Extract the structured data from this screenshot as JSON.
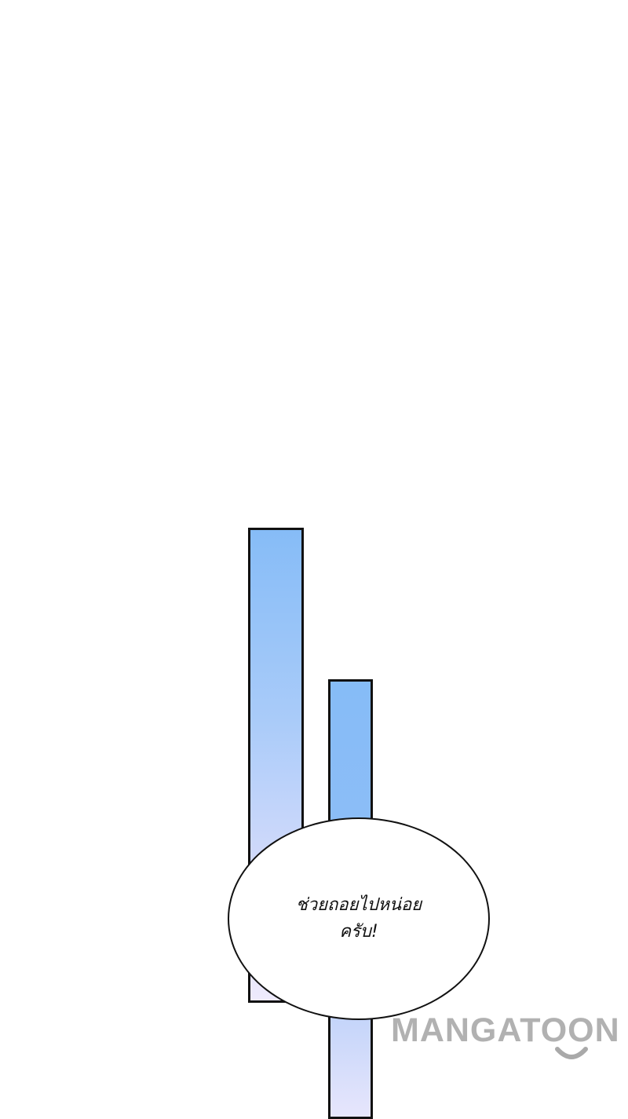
{
  "speech_bubble": {
    "text": "ช่วยถอยไปหน่อย\nครับ!"
  },
  "watermark": {
    "text": "MANGATOON"
  },
  "colors": {
    "background": "#ffffff",
    "bar_top": "#86bcf7",
    "bar_bottom": "#eeeafc",
    "outline": "#111111",
    "watermark": "#a9a9a9"
  },
  "icons": {
    "watermark_mark": "smile-icon"
  }
}
